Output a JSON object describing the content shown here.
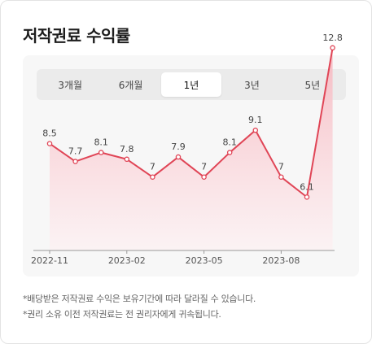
{
  "title": "저작권료 수익률",
  "tabs": [
    {
      "label": "3개월",
      "active": false
    },
    {
      "label": "6개월",
      "active": false
    },
    {
      "label": "1년",
      "active": true
    },
    {
      "label": "3년",
      "active": false
    },
    {
      "label": "5년",
      "active": false
    }
  ],
  "chart_data": {
    "type": "area",
    "title": "",
    "xlabel": "",
    "ylabel": "",
    "x_ticks": [
      "2022-11",
      "2023-02",
      "2023-05",
      "2023-08"
    ],
    "series": [
      {
        "values": [
          8.5,
          7.7,
          8.1,
          7.8,
          7,
          7.9,
          7,
          8.1,
          9.1,
          7,
          6.1,
          12.8
        ],
        "labels": [
          "8.5",
          "7.7",
          "8.1",
          "7.8",
          "7",
          "7.9",
          "7",
          "8.1",
          "9.1",
          "7",
          "6.1",
          "12.8"
        ]
      }
    ],
    "colors": {
      "line": "#e04556",
      "fill_top": "#f6b8c0",
      "fill_bottom": "#fdf0f2"
    },
    "grid": false
  },
  "notes": [
    "*배당받은 저작권료 수익은 보유기간에 따라 달라질 수 있습니다.",
    "*권리 소유 이전 저작권료는 전 권리자에게 귀속됩니다."
  ]
}
